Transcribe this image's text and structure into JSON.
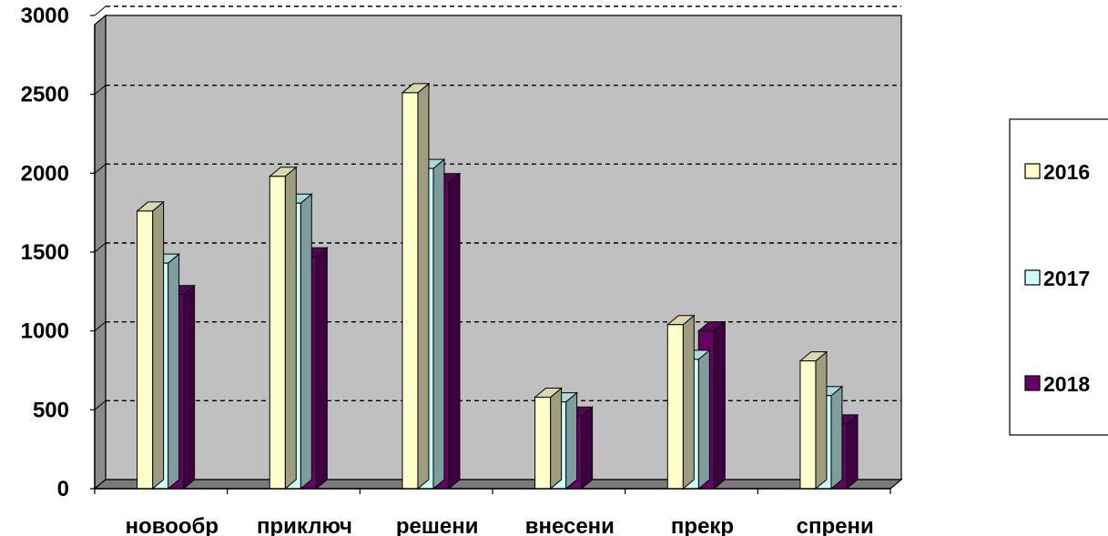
{
  "chart_data": {
    "type": "bar",
    "style": "3d-clustered-column",
    "categories": [
      "новообр",
      "приключ",
      "решени",
      "внесени",
      "прекр",
      "спрени"
    ],
    "series": [
      {
        "name": "2016",
        "values": [
          1760,
          1980,
          2510,
          580,
          1040,
          810
        ],
        "color": "#FFFFCC"
      },
      {
        "name": "2017",
        "values": [
          1430,
          1810,
          2030,
          550,
          820,
          590
        ],
        "color": "#CCFFFF"
      },
      {
        "name": "2018",
        "values": [
          1230,
          1470,
          1940,
          460,
          1000,
          410
        ],
        "color": "#660066"
      }
    ],
    "ylim": [
      0,
      3000
    ],
    "yticks": [
      "0",
      "500",
      "1000",
      "1500",
      "2000",
      "2500",
      "3000"
    ],
    "grid": true,
    "plot_background": "#C0C0C0",
    "legend_position": "right"
  }
}
